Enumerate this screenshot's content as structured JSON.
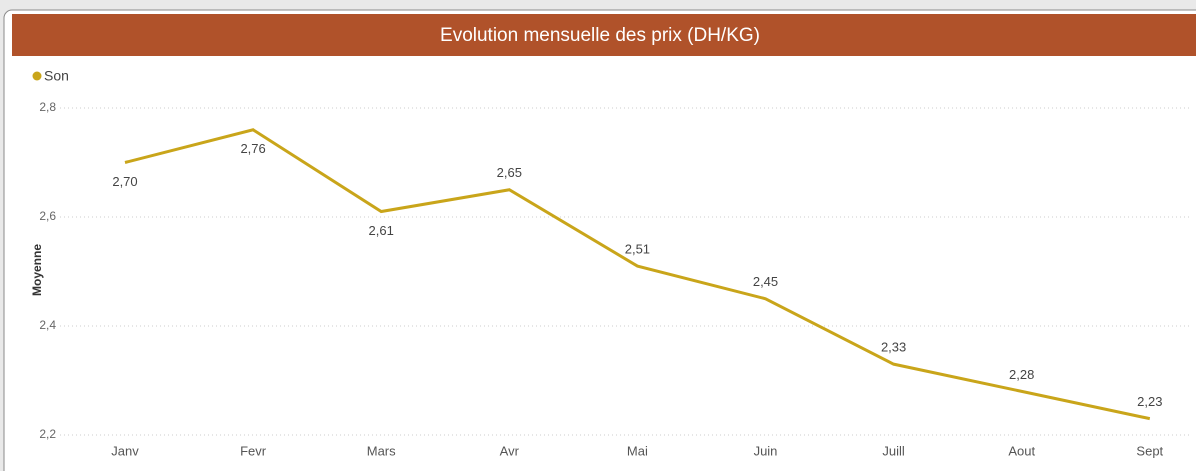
{
  "chart_data": {
    "type": "line",
    "title": "Evolution mensuelle des prix (DH/KG)",
    "y_label": "Moyenne",
    "categories": [
      "Janv",
      "Fevr",
      "Mars",
      "Avr",
      "Mai",
      "Juin",
      "Juill",
      "Aout",
      "Sept"
    ],
    "series": [
      {
        "name": "Son",
        "color": "#c9a51a",
        "values": [
          2.7,
          2.76,
          2.61,
          2.65,
          2.51,
          2.45,
          2.33,
          2.28,
          2.23
        ],
        "value_labels": [
          "2,70",
          "2,76",
          "2,61",
          "2,65",
          "2,51",
          "2,45",
          "2,33",
          "2,28",
          "2,23"
        ]
      }
    ],
    "ylim": [
      2.2,
      2.8
    ],
    "yticks": [
      {
        "value": 2.2,
        "label": "2,2"
      },
      {
        "value": 2.4,
        "label": "2,4"
      },
      {
        "value": 2.6,
        "label": "2,6"
      },
      {
        "value": 2.8,
        "label": "2,8"
      }
    ],
    "grid": true,
    "legend": "top-left"
  }
}
